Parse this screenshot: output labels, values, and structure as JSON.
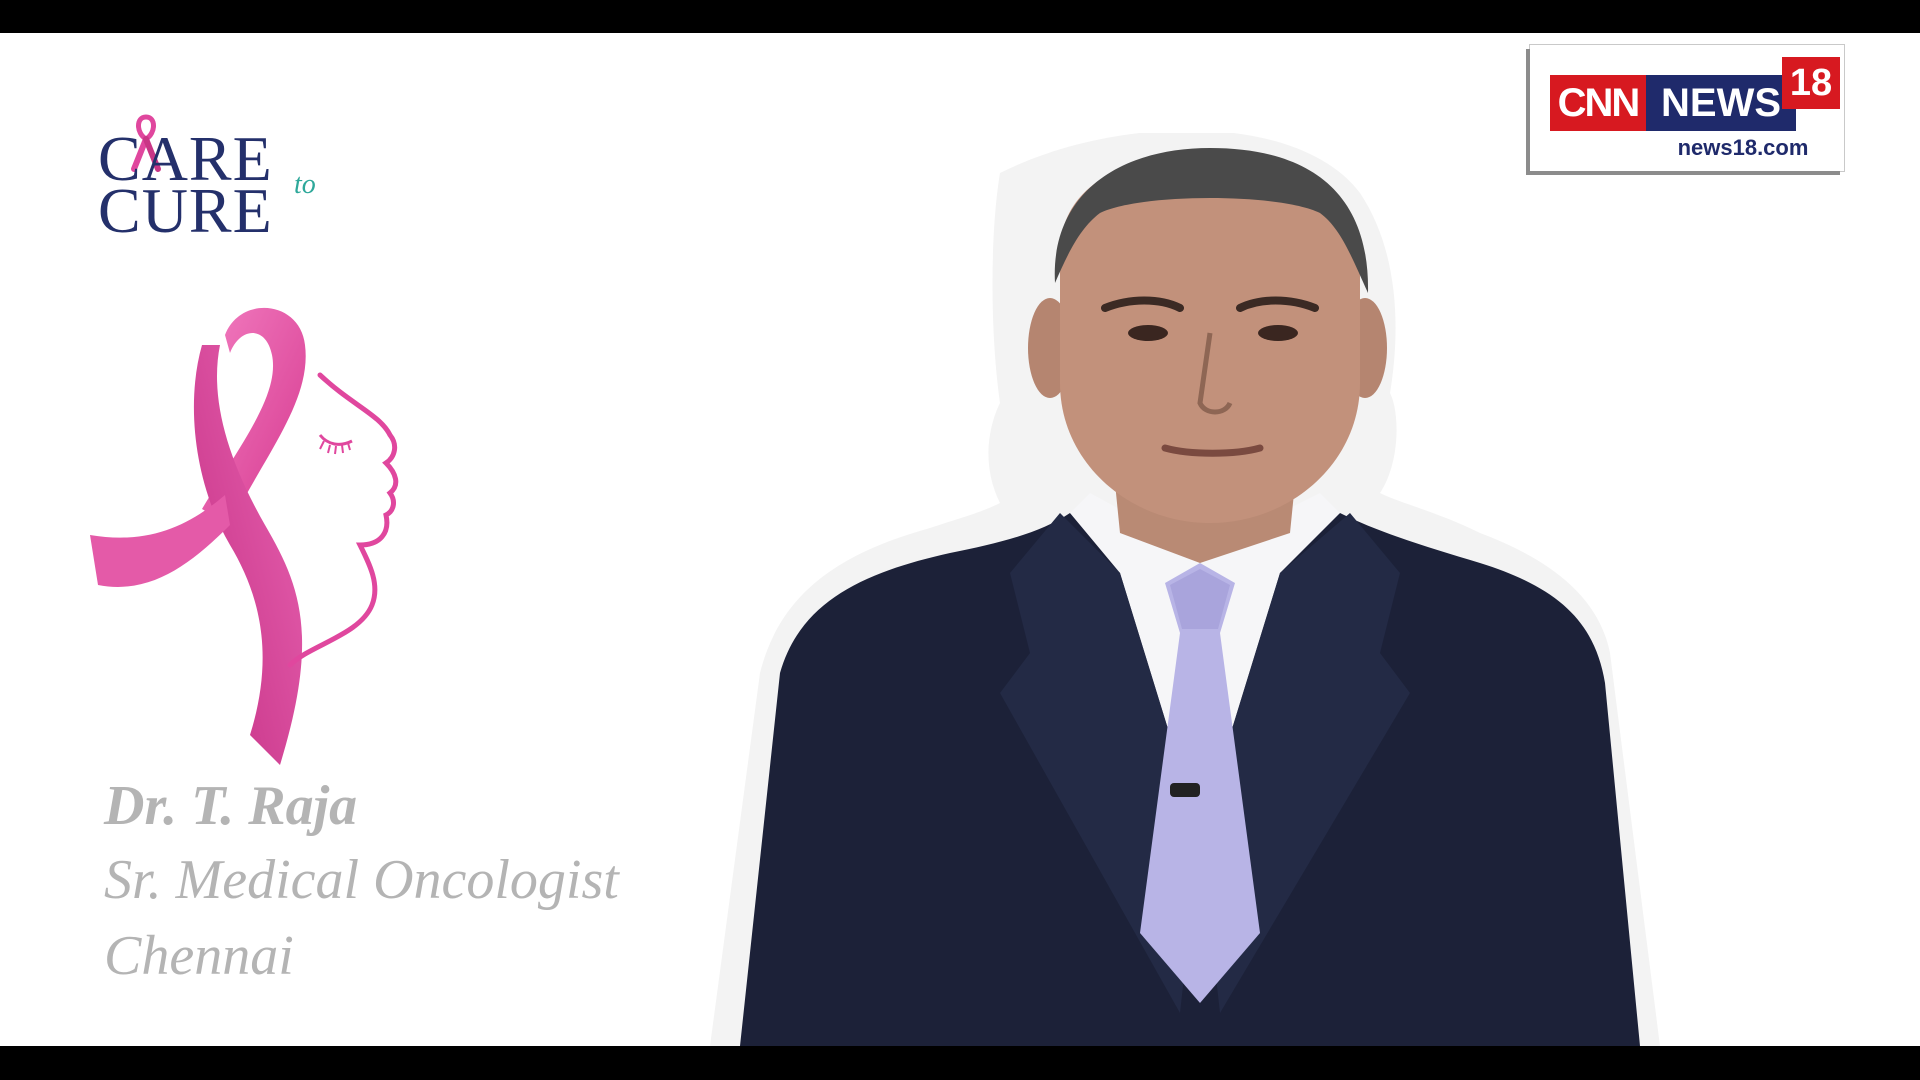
{
  "brand_logo": {
    "line1": "CARE",
    "line2": "CURE",
    "connector": "to"
  },
  "channel_logo": {
    "cnn": "CNN",
    "news": "NEWS",
    "number": "18",
    "url": "news18.com"
  },
  "speaker_card": {
    "name": "Dr. T. Raja",
    "title": "Sr. Medical Oncologist",
    "city": "Chennai"
  },
  "colors": {
    "ribbon_pink": "#e0479e",
    "logo_navy": "#24306b",
    "logo_teal": "#2ea89a",
    "caption_gray": "#b4b4b4",
    "cnn_red": "#d71920",
    "news_blue": "#1f2a6b",
    "suit": "#1c2138"
  },
  "icons": {
    "mini_ribbon": "pink-ribbon-icon",
    "main_illustration": "pink-ribbon-face-illustration"
  }
}
